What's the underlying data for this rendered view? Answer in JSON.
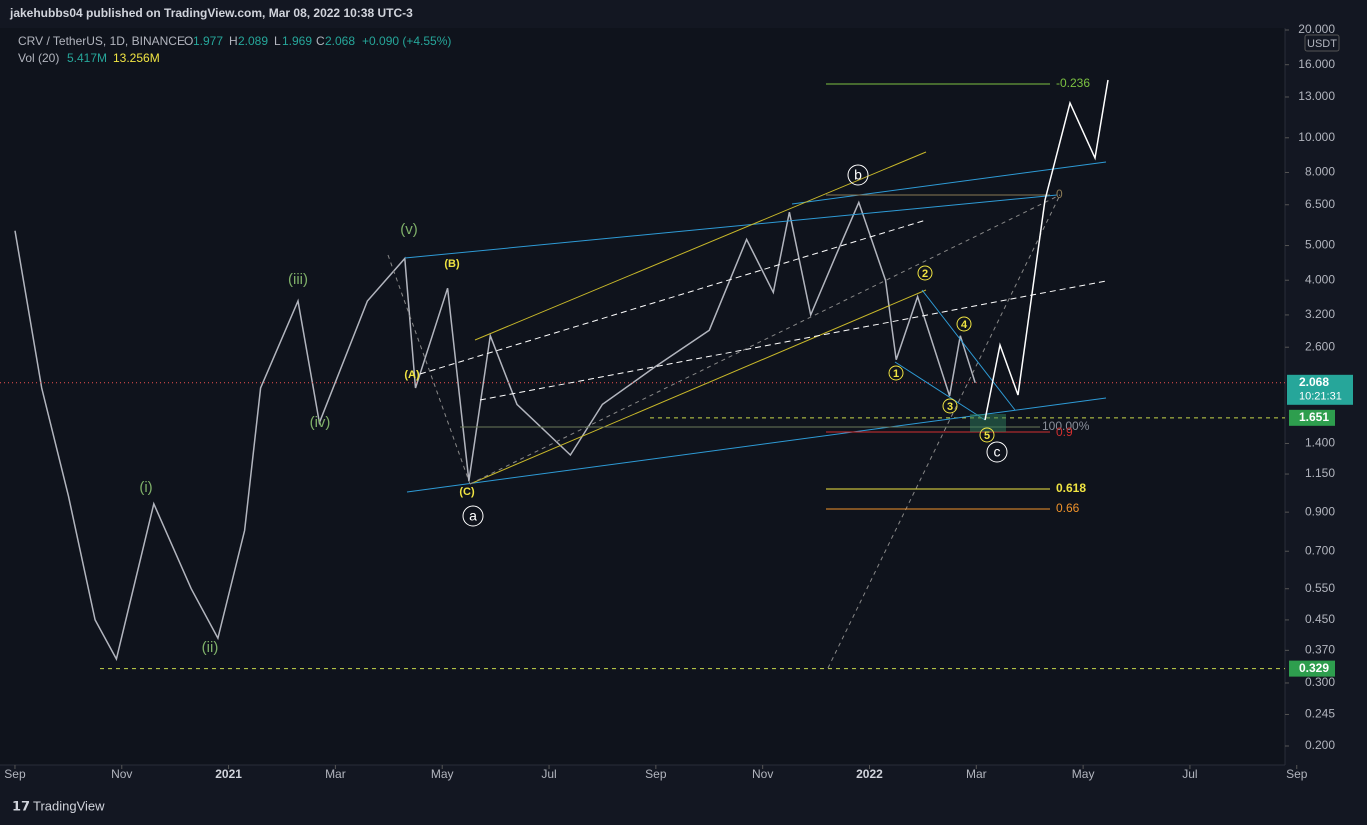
{
  "header": {
    "publisher": "jakehubbs04 published on TradingView.com, Mar 08, 2022 10:38 UTC-3"
  },
  "legend": {
    "symbol": "CRV / TetherUS, 1D, BINANCE",
    "open_label": "O",
    "open": "1.977",
    "high_label": "H",
    "high": "2.089",
    "low_label": "L",
    "low": "1.969",
    "close_label": "C",
    "close": "2.068",
    "change": "+0.090 (+4.55%)",
    "volume_label": "Vol (20)",
    "volume": "5.417M",
    "volume_ma": "13.256M"
  },
  "currency": "USDT",
  "footer": "TradingView",
  "chart_data": {
    "type": "line",
    "log_scale": true,
    "color": "#b2b5be",
    "x": [
      0,
      0.5,
      1.0,
      1.5,
      1.9,
      2.6,
      3.3,
      3.8,
      4.3,
      4.6,
      5.3,
      5.7,
      6.6,
      7.3,
      7.5,
      8.1,
      8.5,
      8.9,
      9.4,
      10.4,
      11,
      12,
      13,
      13.7,
      14.2,
      14.5,
      14.9,
      15.4,
      15.8,
      16.3,
      16.5,
      16.9,
      17.5,
      17.7,
      17.98
    ],
    "values": [
      5.5,
      2.0,
      1.0,
      0.45,
      0.35,
      0.95,
      0.55,
      0.4,
      0.8,
      2.0,
      3.5,
      1.6,
      3.5,
      4.6,
      2.0,
      3.8,
      1.1,
      2.8,
      1.8,
      1.3,
      1.8,
      2.3,
      2.9,
      5.2,
      3.7,
      6.2,
      3.2,
      4.8,
      6.6,
      4.0,
      2.4,
      3.6,
      1.9,
      2.8,
      2.068
    ],
    "xlim": [
      -0.28,
      23.78
    ],
    "ylim": [
      0.177,
      20.26
    ],
    "xticks": [
      {
        "value": 0,
        "label": "Sep"
      },
      {
        "value": 2,
        "label": "Nov"
      },
      {
        "value": 4,
        "label": "2021"
      },
      {
        "value": 6,
        "label": "Mar"
      },
      {
        "value": 8,
        "label": "May"
      },
      {
        "value": 10,
        "label": "Jul"
      },
      {
        "value": 12,
        "label": "Sep"
      },
      {
        "value": 14,
        "label": "Nov"
      },
      {
        "value": 16,
        "label": "2022"
      },
      {
        "value": 18,
        "label": "Mar"
      },
      {
        "value": 20,
        "label": "May"
      },
      {
        "value": 22,
        "label": "Jul"
      },
      {
        "value": 24,
        "label": "Sep"
      }
    ],
    "yticks": [
      {
        "value": 20,
        "label": "20.000"
      },
      {
        "value": 16,
        "label": "16.000"
      },
      {
        "value": 13,
        "label": "13.000"
      },
      {
        "value": 10,
        "label": "10.000"
      },
      {
        "value": 8,
        "label": "8.000"
      },
      {
        "value": 6.5,
        "label": "6.500"
      },
      {
        "value": 5,
        "label": "5.000"
      },
      {
        "value": 4,
        "label": "4.000"
      },
      {
        "value": 3.2,
        "label": "3.200"
      },
      {
        "value": 2.6,
        "label": "2.600"
      },
      {
        "value": 1.4,
        "label": "1.400"
      },
      {
        "value": 1.15,
        "label": "1.150"
      },
      {
        "value": 0.9,
        "label": "0.900"
      },
      {
        "value": 0.7,
        "label": "0.700"
      },
      {
        "value": 0.55,
        "label": "0.550"
      },
      {
        "value": 0.45,
        "label": "0.450"
      },
      {
        "value": 0.37,
        "label": "0.370"
      },
      {
        "value": 0.3,
        "label": "0.300"
      },
      {
        "value": 0.245,
        "label": "0.245"
      },
      {
        "value": 0.2,
        "label": "0.200"
      }
    ],
    "last_price": {
      "value": 2.068,
      "label": "2.068"
    },
    "countdown": "10:21:31",
    "levels": [
      {
        "value": 1.651,
        "label": "1.651"
      },
      {
        "value": 0.329,
        "label": "0.329"
      }
    ],
    "annotations": [
      "(i)",
      "(ii)",
      "(iii)",
      "(iv)",
      "(v)",
      "(A)",
      "(B)",
      "(C)",
      "a",
      "b",
      "c",
      "1",
      "2",
      "3",
      "4",
      "5",
      "-0.236",
      "0",
      "100.00%",
      "0.9",
      "0.618",
      "0.66"
    ]
  }
}
